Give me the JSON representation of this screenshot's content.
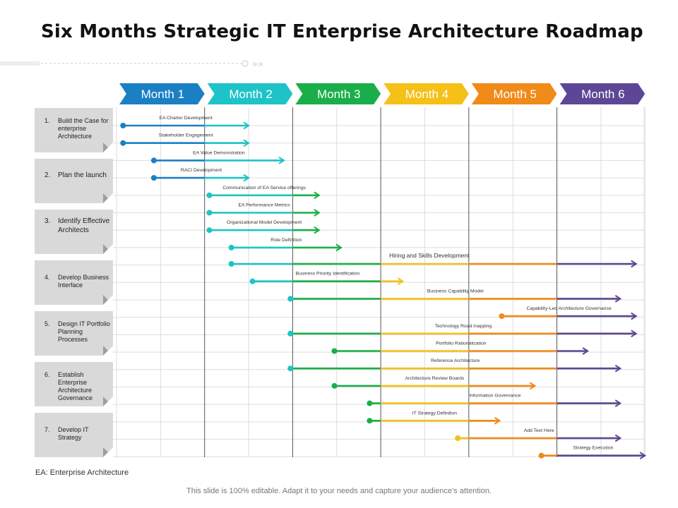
{
  "title": "Six Months Strategic IT Enterprise Architecture Roadmap",
  "months": [
    {
      "label": "Month 1",
      "color": "#1b7fc4"
    },
    {
      "label": "Month 2",
      "color": "#1ec3c8"
    },
    {
      "label": "Month 3",
      "color": "#1aae4a"
    },
    {
      "label": "Month 4",
      "color": "#f5c018"
    },
    {
      "label": "Month 5",
      "color": "#f08a18"
    },
    {
      "label": "Month 6",
      "color": "#5e4696"
    }
  ],
  "phases": [
    {
      "num": "1.",
      "label": "Build the Case for enterprise Architecture"
    },
    {
      "num": "2.",
      "label": "Plan the launch"
    },
    {
      "num": "3.",
      "label": "Identify Effective Architects"
    },
    {
      "num": "4.",
      "label": "Develop Business Interface"
    },
    {
      "num": "5.",
      "label": "Design IT Portfolio Planning Processes"
    },
    {
      "num": "6.",
      "label": "Establish Enterprise Architecture Governance"
    },
    {
      "num": "7.",
      "label": "Develop IT Strategy"
    }
  ],
  "tasks": [
    {
      "label": "EA Charter Development",
      "start": 0.05,
      "end": 1.5
    },
    {
      "label": "Stakeholder  Engagement",
      "start": 0.05,
      "end": 1.5
    },
    {
      "label": "EA Value Demonstration",
      "start": 0.4,
      "end": 1.9
    },
    {
      "label": "RACI Development",
      "start": 0.4,
      "end": 1.5
    },
    {
      "label": "Communication of EA Service offerings",
      "start": 1.03,
      "end": 2.3
    },
    {
      "label": "EA Performance Metrics",
      "start": 1.03,
      "end": 2.3
    },
    {
      "label": "Organizational Model Development",
      "start": 1.03,
      "end": 2.3
    },
    {
      "label": "Role Definition",
      "start": 1.28,
      "end": 2.55
    },
    {
      "label": "Hiring and Skills Development",
      "start": 1.28,
      "end": 5.9
    },
    {
      "label": "Business Priority Identification",
      "start": 1.52,
      "end": 3.25
    },
    {
      "label": "Business Capability Model",
      "start": 1.95,
      "end": 5.72
    },
    {
      "label": "Capability-Led  Architecture Governance",
      "start": 4.35,
      "end": 5.9
    },
    {
      "label": "Technology  Road mapping",
      "start": 1.95,
      "end": 5.9
    },
    {
      "label": "Portfolio  Rationalization",
      "start": 2.45,
      "end": 5.35
    },
    {
      "label": "Reference  Architecture",
      "start": 1.95,
      "end": 5.72
    },
    {
      "label": "Architecture  Review Boards",
      "start": 2.45,
      "end": 4.75
    },
    {
      "label": "Information  Governance",
      "start": 2.85,
      "end": 5.72
    },
    {
      "label": "IT Strategy  Definition",
      "start": 2.85,
      "end": 4.35
    },
    {
      "label": "Add Text Here",
      "start": 3.85,
      "end": 5.72
    },
    {
      "label": "Strategy  Execution",
      "start": 4.8,
      "end": 6.0
    }
  ],
  "legend": "EA:  Enterprise Architecture",
  "footer": "This slide is 100% editable. Adapt it to your needs and capture your audience's attention."
}
